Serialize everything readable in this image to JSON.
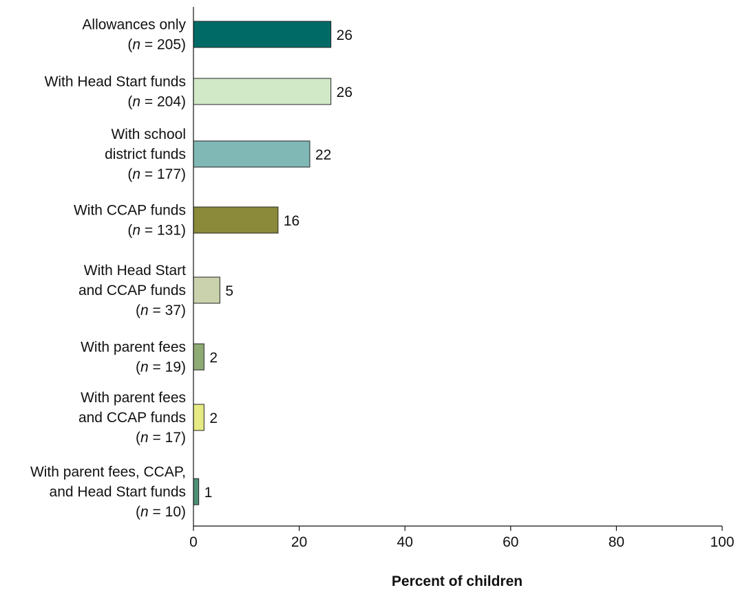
{
  "chart_data": {
    "type": "bar",
    "orientation": "horizontal",
    "categories": [
      {
        "lines": [
          {
            "text": "Allowances only"
          },
          {
            "pre": "(",
            "n": "n",
            "post": " = 205)"
          }
        ],
        "value": 26,
        "color": "#006b66"
      },
      {
        "lines": [
          {
            "text": "With Head Start funds"
          },
          {
            "pre": "(",
            "n": "n",
            "post": " = 204)"
          }
        ],
        "value": 26,
        "color": "#d2e9c8"
      },
      {
        "lines": [
          {
            "text": "With school"
          },
          {
            "text": "district funds"
          },
          {
            "pre": "(",
            "n": "n",
            "post": " = 177)"
          }
        ],
        "value": 22,
        "color": "#80b8b6"
      },
      {
        "lines": [
          {
            "text": "With CCAP funds"
          },
          {
            "pre": "(",
            "n": "n",
            "post": " = 131)"
          }
        ],
        "value": 16,
        "color": "#8a8a3a"
      },
      {
        "lines": [
          {
            "text": "With Head Start"
          },
          {
            "text": "and CCAP funds"
          },
          {
            "pre": "(",
            "n": "n",
            "post": " = 37)"
          }
        ],
        "value": 5,
        "color": "#c9d2ad"
      },
      {
        "lines": [
          {
            "text": "With parent fees"
          },
          {
            "pre": "(",
            "n": "n",
            "post": " = 19)"
          }
        ],
        "value": 2,
        "color": "#8fab75"
      },
      {
        "lines": [
          {
            "text": "With parent fees"
          },
          {
            "text": "and CCAP funds"
          },
          {
            "pre": "(",
            "n": "n",
            "post": " = 17)"
          }
        ],
        "value": 2,
        "color": "#e6ea82"
      },
      {
        "lines": [
          {
            "text": "With parent fees, CCAP,"
          },
          {
            "text": "and Head Start funds"
          },
          {
            "pre": "(",
            "n": "n",
            "post": " = 10)"
          }
        ],
        "value": 1,
        "color": "#4e9076"
      }
    ],
    "value_labels": [
      "26",
      "26",
      "22",
      "16",
      "5",
      "2",
      "2",
      "1"
    ],
    "xlim": [
      0,
      100
    ],
    "xticks": [
      "0",
      "20",
      "40",
      "60",
      "80",
      "100"
    ],
    "xlabel": "Percent of children",
    "title": "",
    "grid": false,
    "legend": "none"
  }
}
